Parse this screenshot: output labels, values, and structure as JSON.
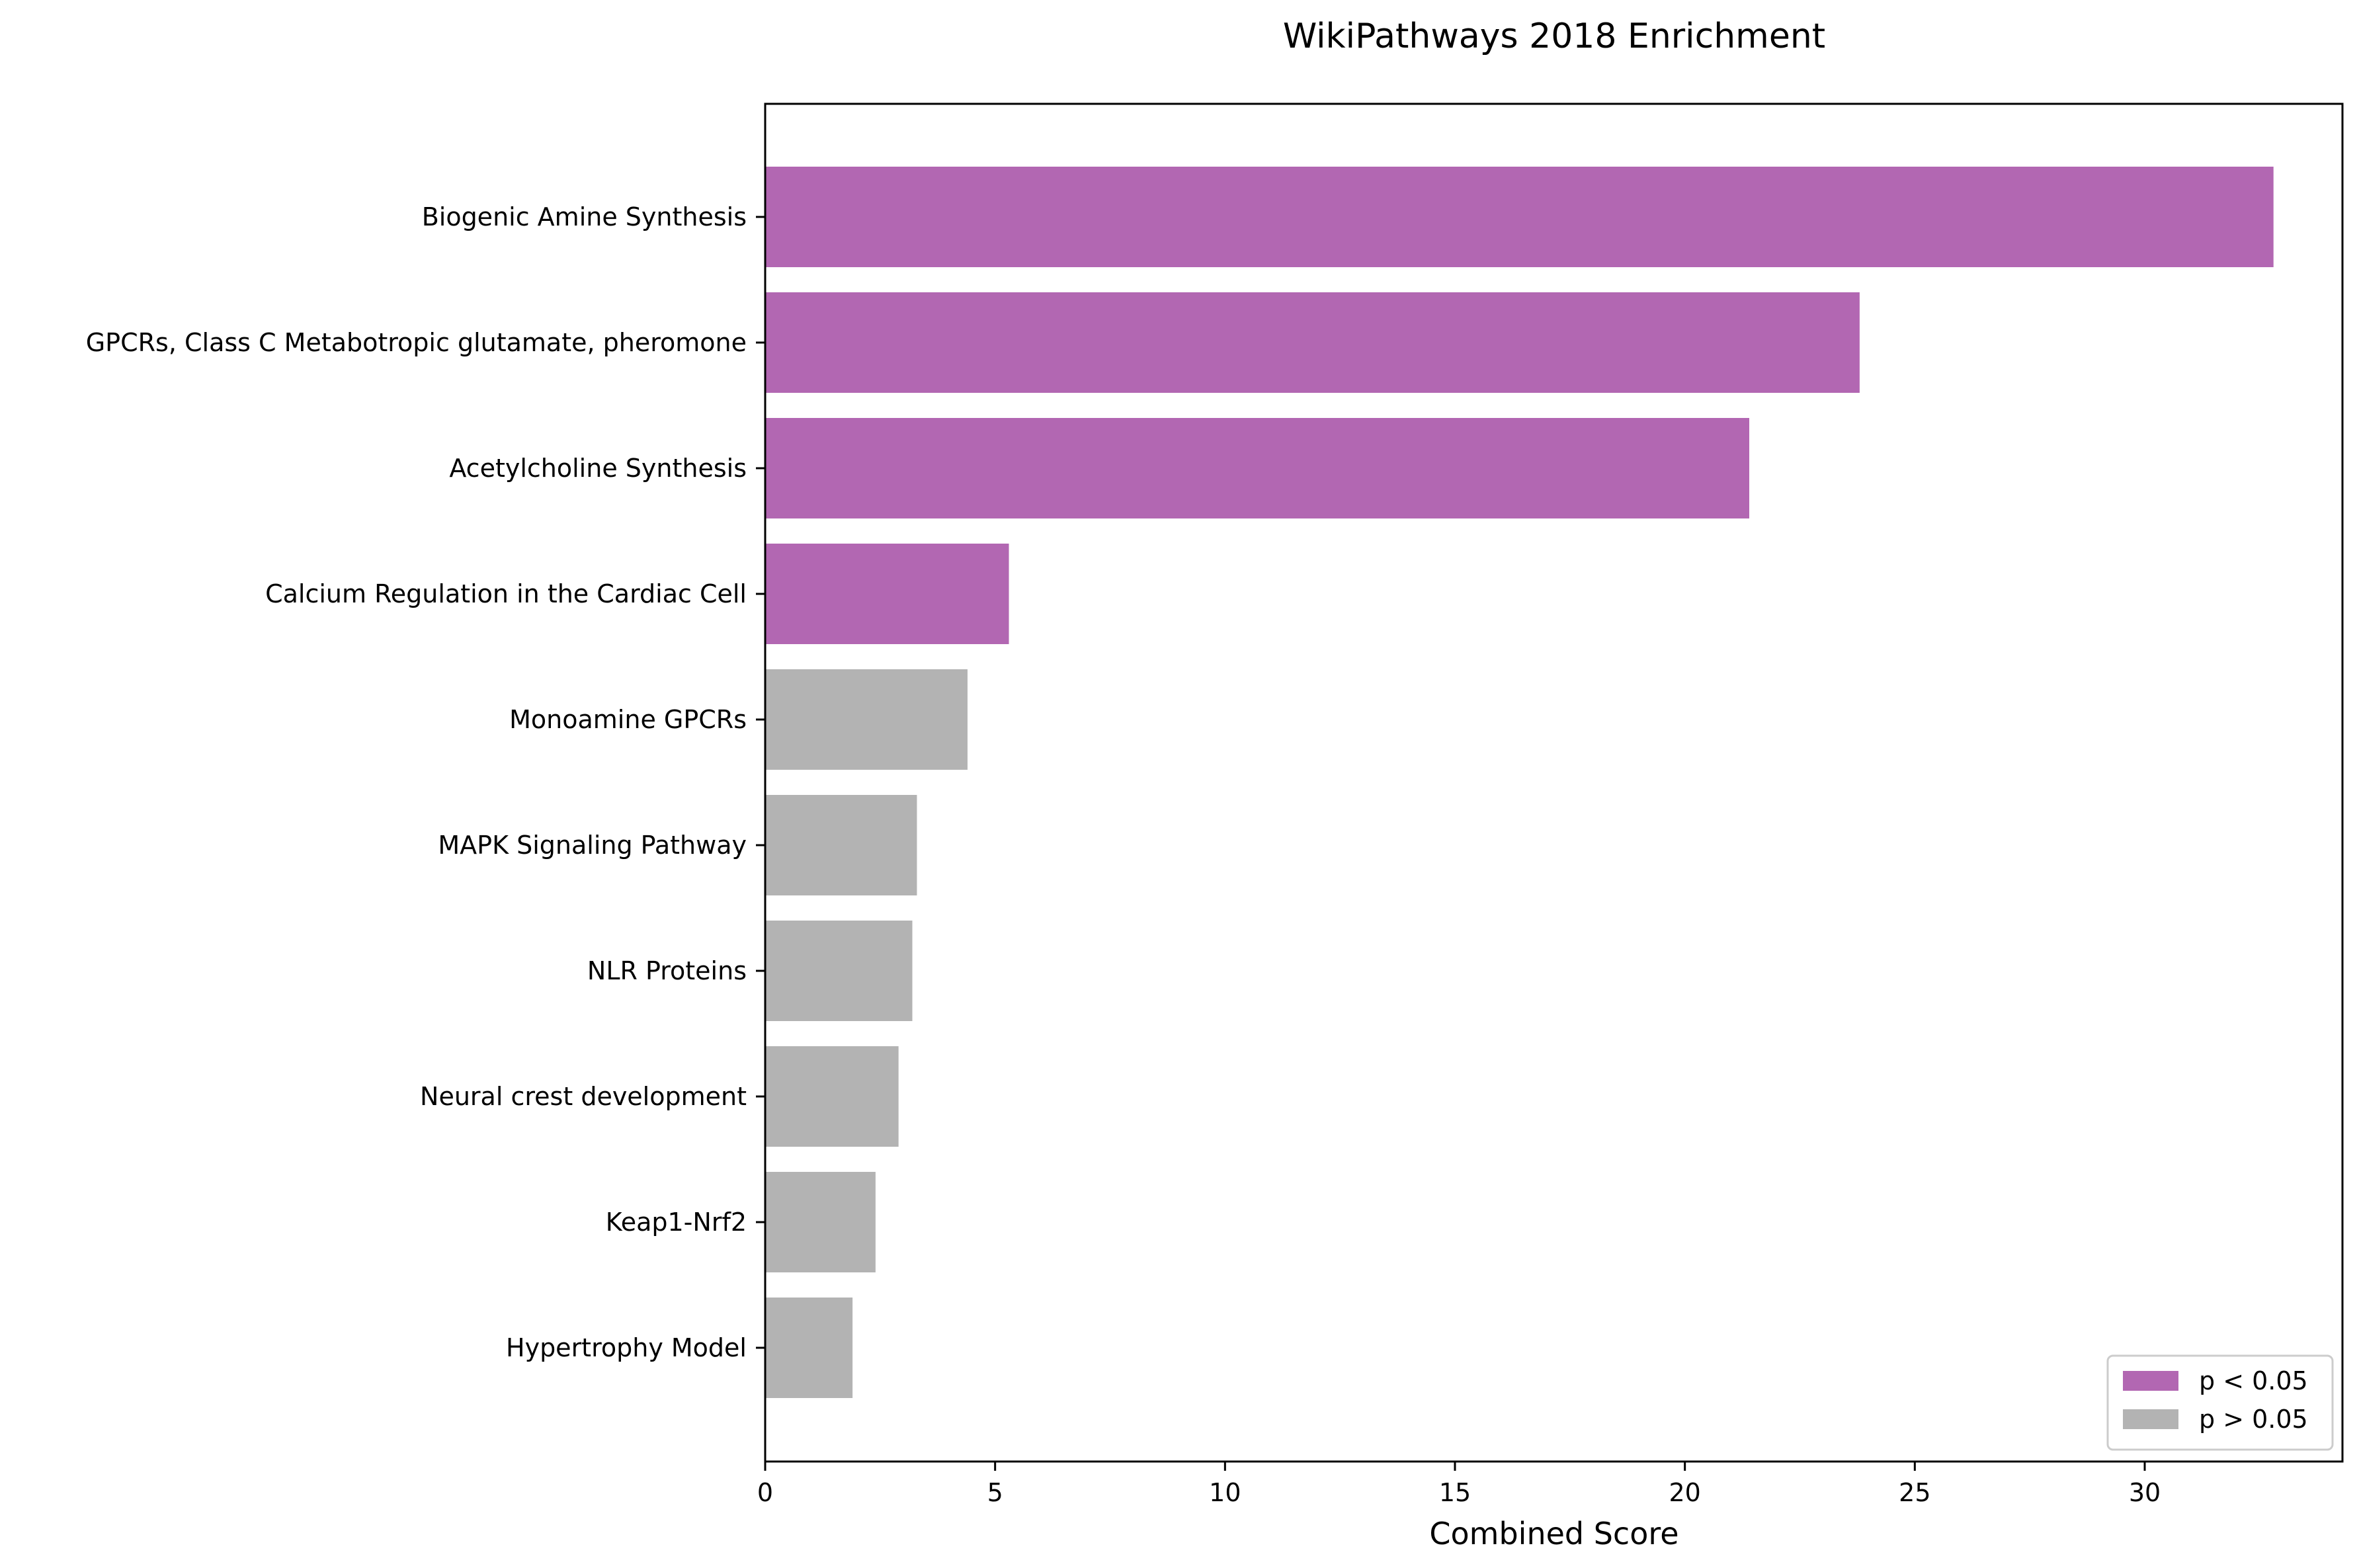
{
  "chart_data": {
    "type": "bar",
    "orientation": "horizontal",
    "title": "WikiPathways 2018 Enrichment",
    "xlabel": "Combined Score",
    "ylabel": "",
    "xlim": [
      0,
      34.3
    ],
    "xticks": [
      "0",
      "5",
      "10",
      "15",
      "20",
      "25",
      "30"
    ],
    "categories": [
      "Biogenic Amine Synthesis",
      "GPCRs, Class C Metabotropic glutamate, pheromone",
      "Acetylcholine Synthesis",
      "Calcium Regulation in the Cardiac Cell",
      "Monoamine GPCRs",
      "MAPK Signaling Pathway",
      "NLR Proteins",
      "Neural crest development",
      "Keap1-Nrf2",
      "Hypertrophy Model"
    ],
    "values": [
      32.8,
      23.8,
      21.4,
      5.3,
      4.4,
      3.3,
      3.2,
      2.9,
      2.4,
      1.9
    ],
    "significant": [
      true,
      true,
      true,
      true,
      false,
      false,
      false,
      false,
      false,
      false
    ],
    "legend": {
      "placement": "lower-right",
      "entries": [
        {
          "label": "p < 0.05",
          "color": "#b267b2"
        },
        {
          "label": "p > 0.05",
          "color": "#b3b3b3"
        }
      ]
    },
    "grid": false
  }
}
